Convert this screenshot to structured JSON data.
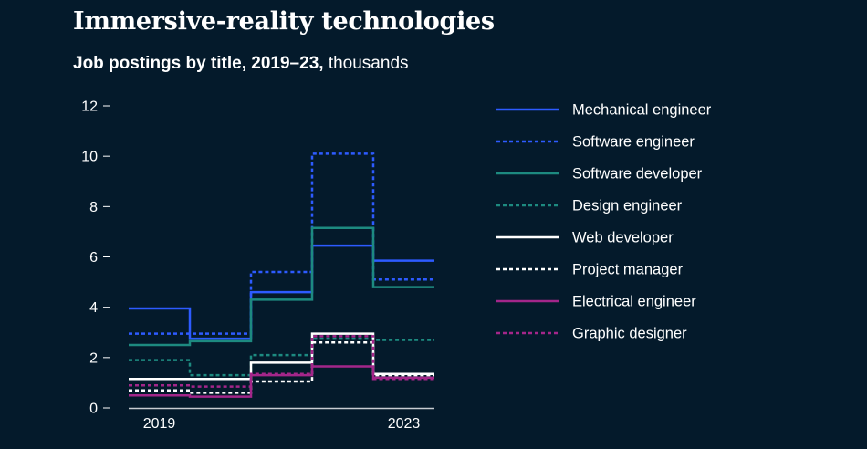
{
  "header": {
    "title": "Immersive-reality technologies",
    "subtitle_bold": "Job postings by title, 2019–23,",
    "subtitle_rest": " thousands"
  },
  "chart_data": {
    "type": "line",
    "step": true,
    "title": "Immersive-reality technologies",
    "subtitle": "Job postings by title, 2019–23, thousands",
    "xlabel": "",
    "ylabel": "",
    "x": [
      2019,
      2020,
      2021,
      2022,
      2023
    ],
    "x_tick_labels": [
      "2019",
      "2023"
    ],
    "ylim": [
      0,
      12
    ],
    "y_ticks": [
      0,
      2,
      4,
      6,
      8,
      10,
      12
    ],
    "legend_position": "right",
    "series": [
      {
        "name": "Mechanical engineer",
        "values": [
          3.95,
          2.75,
          4.6,
          6.45,
          5.85
        ],
        "color": "#2d5bff",
        "dash": "solid"
      },
      {
        "name": "Software engineer",
        "values": [
          2.95,
          2.95,
          5.4,
          10.1,
          5.1
        ],
        "color": "#2d5bff",
        "dash": "dotted"
      },
      {
        "name": "Software developer",
        "values": [
          2.5,
          2.65,
          4.3,
          7.15,
          4.8
        ],
        "color": "#1d8a80",
        "dash": "solid"
      },
      {
        "name": "Design engineer",
        "values": [
          1.9,
          1.3,
          2.1,
          2.75,
          2.7
        ],
        "color": "#1d8a80",
        "dash": "dotted"
      },
      {
        "name": "Web developer",
        "values": [
          1.15,
          1.15,
          1.8,
          2.95,
          1.35
        ],
        "color": "#ffffff",
        "dash": "solid"
      },
      {
        "name": "Project manager",
        "values": [
          0.7,
          0.6,
          1.05,
          2.6,
          1.3
        ],
        "color": "#ffffff",
        "dash": "dotted"
      },
      {
        "name": "Electrical engineer",
        "values": [
          0.5,
          0.45,
          1.3,
          1.65,
          1.2
        ],
        "color": "#a3268a",
        "dash": "solid"
      },
      {
        "name": "Graphic designer",
        "values": [
          0.9,
          0.85,
          1.35,
          2.85,
          1.15
        ],
        "color": "#a3268a",
        "dash": "dotted"
      }
    ]
  }
}
